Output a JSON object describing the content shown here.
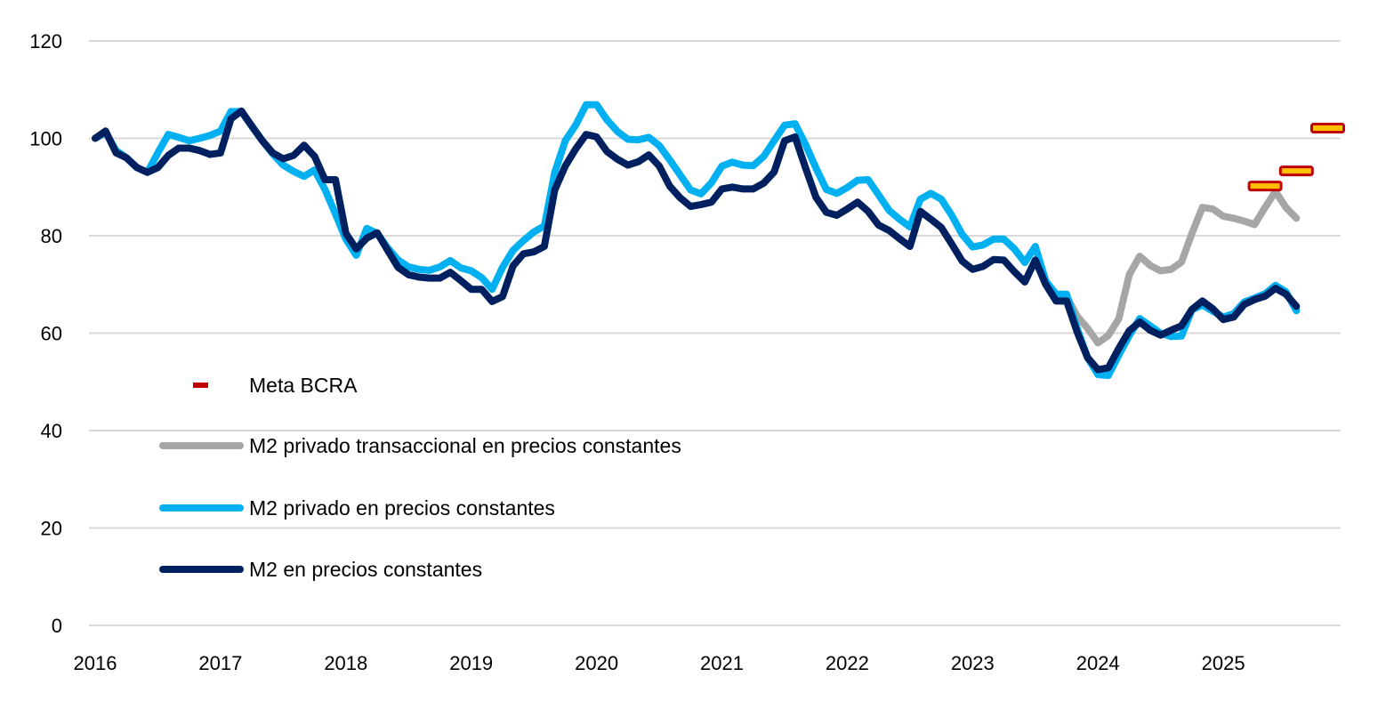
{
  "chart_data": {
    "type": "line",
    "title": "",
    "xlabel": "",
    "ylabel": "",
    "ylim": [
      0,
      120
    ],
    "yticks": [
      "0",
      "20",
      "40",
      "60",
      "80",
      "100",
      "120"
    ],
    "xticks": [
      "2016",
      "2017",
      "2018",
      "2019",
      "2020",
      "2021",
      "2022",
      "2023",
      "2024",
      "2025"
    ],
    "grid": "horizontal",
    "legend_position": "bottom-left",
    "x": [
      "2016-01",
      "2016-02",
      "2016-03",
      "2016-04",
      "2016-05",
      "2016-06",
      "2016-07",
      "2016-08",
      "2016-09",
      "2016-10",
      "2016-11",
      "2016-12",
      "2017-01",
      "2017-02",
      "2017-03",
      "2017-04",
      "2017-05",
      "2017-06",
      "2017-07",
      "2017-08",
      "2017-09",
      "2017-10",
      "2017-11",
      "2017-12",
      "2018-01",
      "2018-02",
      "2018-03",
      "2018-04",
      "2018-05",
      "2018-06",
      "2018-07",
      "2018-08",
      "2018-09",
      "2018-10",
      "2018-11",
      "2018-12",
      "2019-01",
      "2019-02",
      "2019-03",
      "2019-04",
      "2019-05",
      "2019-06",
      "2019-07",
      "2019-08",
      "2019-09",
      "2019-10",
      "2019-11",
      "2019-12",
      "2020-01",
      "2020-02",
      "2020-03",
      "2020-04",
      "2020-05",
      "2020-06",
      "2020-07",
      "2020-08",
      "2020-09",
      "2020-10",
      "2020-11",
      "2020-12",
      "2021-01",
      "2021-02",
      "2021-03",
      "2021-04",
      "2021-05",
      "2021-06",
      "2021-07",
      "2021-08",
      "2021-09",
      "2021-10",
      "2021-11",
      "2021-12",
      "2022-01",
      "2022-02",
      "2022-03",
      "2022-04",
      "2022-05",
      "2022-06",
      "2022-07",
      "2022-08",
      "2022-09",
      "2022-10",
      "2022-11",
      "2022-12",
      "2023-01",
      "2023-02",
      "2023-03",
      "2023-04",
      "2023-05",
      "2023-06",
      "2023-07",
      "2023-08",
      "2023-09",
      "2023-10",
      "2023-11",
      "2023-12",
      "2024-01",
      "2024-02",
      "2024-03",
      "2024-04",
      "2024-05",
      "2024-06",
      "2024-07",
      "2024-08",
      "2024-09",
      "2024-10",
      "2024-11",
      "2024-12",
      "2025-01",
      "2025-02",
      "2025-03",
      "2025-04",
      "2025-05",
      "2025-06",
      "2025-07",
      "2025-08"
    ],
    "series": [
      {
        "name": "M2 privado transaccional en precios constantes",
        "color": "#a6a6a6",
        "x": [
          "2023-10",
          "2023-11",
          "2023-12",
          "2024-01",
          "2024-02",
          "2024-03",
          "2024-04",
          "2024-05",
          "2024-06",
          "2024-07",
          "2024-08",
          "2024-09",
          "2024-10",
          "2024-11",
          "2024-12",
          "2025-01",
          "2025-02",
          "2025-03",
          "2025-04",
          "2025-05",
          "2025-06",
          "2025-07",
          "2025-08"
        ],
        "values": [
          67.5,
          63.5,
          61,
          58,
          59.5,
          63,
          72,
          75.8,
          73.9,
          72.8,
          73.1,
          74.6,
          80.5,
          85.8,
          85.5,
          84,
          83.6,
          83,
          82.3,
          85.8,
          89.1,
          85.8,
          83.6
        ]
      },
      {
        "name": "M2 privado en precios constantes",
        "color": "#00b0f0",
        "values": [
          100,
          101.2,
          97.5,
          96,
          94,
          93,
          97,
          100.8,
          100.2,
          99.5,
          100,
          100.6,
          101.5,
          105.5,
          105.5,
          102.5,
          99.5,
          96.8,
          94.5,
          93.2,
          92.2,
          93.5,
          89.5,
          84.5,
          79.3,
          76,
          81.5,
          80.5,
          77.5,
          75,
          73.6,
          73.1,
          72.9,
          73.6,
          74.9,
          73.4,
          72.8,
          71.4,
          69,
          73.5,
          77,
          79,
          80.8,
          82,
          93,
          99.5,
          102.7,
          106.9,
          106.9,
          103.8,
          101.4,
          99.8,
          99.7,
          100.2,
          98.5,
          95.6,
          92.5,
          89.4,
          88.6,
          90.9,
          94.3,
          95.1,
          94.5,
          94.4,
          96.3,
          99.5,
          102.7,
          103,
          98.8,
          93.9,
          89.5,
          88.7,
          89.9,
          91.4,
          91.5,
          88.4,
          85.2,
          83.4,
          81.8,
          87.5,
          88.7,
          87.5,
          84.2,
          80.3,
          77.7,
          78.1,
          79.3,
          79.3,
          77.3,
          74.5,
          77.8,
          70.7,
          68,
          68,
          61,
          55,
          51.5,
          51.3,
          55.5,
          59.5,
          63,
          61.5,
          60,
          59.3,
          59.4,
          64.8,
          65.8,
          64.5,
          63.3,
          64,
          66.4,
          67.2,
          68.1,
          69.8,
          68.5,
          64.6
        ]
      },
      {
        "name": "M2 en precios constantes",
        "color": "#002060",
        "values": [
          100,
          101.5,
          97,
          96,
          94,
          93,
          94,
          96.5,
          98,
          98,
          97.5,
          96.7,
          97,
          104,
          105.6,
          102.5,
          99.5,
          97,
          95.8,
          96.5,
          98.6,
          96.3,
          91.5,
          91.5,
          80.5,
          77.3,
          79.5,
          80.6,
          77,
          73.5,
          72,
          71.5,
          71.3,
          71.3,
          72.5,
          70.8,
          69,
          69,
          66.5,
          67.5,
          73.8,
          76.3,
          76.7,
          77.8,
          89.4,
          94.3,
          97.8,
          100.8,
          100.3,
          97.3,
          95.7,
          94.5,
          95.2,
          96.6,
          94.3,
          90.2,
          87.8,
          86,
          86.4,
          86.9,
          89.6,
          90,
          89.6,
          89.6,
          90.8,
          93.1,
          99.5,
          100.3,
          94,
          87.9,
          84.8,
          84.2,
          85.5,
          86.9,
          85,
          82.2,
          81.1,
          79.4,
          77.8,
          85,
          83.4,
          81.7,
          78.3,
          74.8,
          73.1,
          73.7,
          75.1,
          75,
          72.6,
          70.5,
          75,
          70,
          66.6,
          66.6,
          60.3,
          55,
          52.5,
          52.9,
          56.9,
          60.5,
          62.3,
          60.6,
          59.6,
          60.6,
          61.5,
          64.9,
          66.6,
          65,
          62.8,
          63.3,
          65.9,
          66.9,
          67.6,
          69.2,
          68,
          65.5
        ]
      }
    ],
    "targets": {
      "name": "Meta BCRA",
      "color": "#c00000",
      "fill": "#ffc000",
      "x": [
        "2025-05",
        "2025-08",
        "2025-11"
      ],
      "values": [
        90.2,
        93.3,
        102.1
      ]
    },
    "legend": [
      {
        "label": "Meta BCRA",
        "kind": "marker"
      },
      {
        "label": "M2 privado transaccional en precios constantes",
        "kind": "line"
      },
      {
        "label": "M2 privado en precios constantes",
        "kind": "line"
      },
      {
        "label": "M2 en precios constantes",
        "kind": "line"
      }
    ]
  }
}
